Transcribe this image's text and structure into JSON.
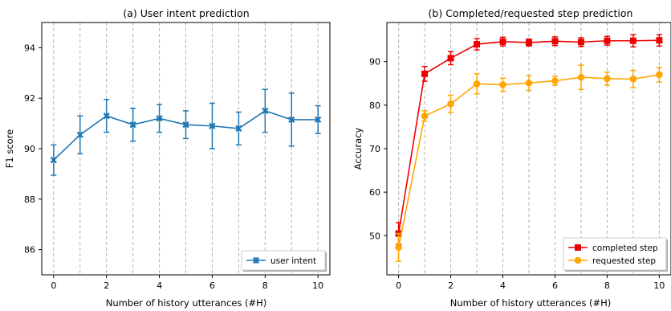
{
  "chart_data": [
    {
      "type": "line",
      "title": "(a) User intent prediction",
      "xlabel": "Number of history utterances (#H)",
      "ylabel": "F1 score",
      "xlim": [
        -0.45,
        10.45
      ],
      "ylim": [
        85.0,
        95.0
      ],
      "xticks": [
        0,
        2,
        4,
        6,
        8,
        10
      ],
      "xtick_labels": [
        "0",
        "2",
        "4",
        "6",
        "8",
        "10"
      ],
      "yticks": [
        86,
        88,
        90,
        92,
        94
      ],
      "ytick_labels": [
        "86",
        "88",
        "90",
        "92",
        "94"
      ],
      "vgrid_dashed": [
        0,
        1,
        2,
        3,
        4,
        5,
        6,
        7,
        8,
        9,
        10
      ],
      "legend_loc": "lower right",
      "series": [
        {
          "name": "user intent",
          "color": "#1f77b4",
          "marker": "x",
          "x": [
            0,
            1,
            2,
            3,
            4,
            5,
            6,
            7,
            8,
            9,
            10
          ],
          "y": [
            89.55,
            90.55,
            91.3,
            90.95,
            91.2,
            90.95,
            90.9,
            90.8,
            91.5,
            91.15,
            91.15
          ],
          "err": [
            0.6,
            0.75,
            0.65,
            0.65,
            0.55,
            0.55,
            0.9,
            0.65,
            0.85,
            1.05,
            0.55
          ]
        }
      ]
    },
    {
      "type": "line",
      "title": "(b) Completed/requested step prediction",
      "xlabel": "Number of history utterances (#H)",
      "ylabel": "Accuracy",
      "xlim": [
        -0.45,
        10.45
      ],
      "ylim": [
        41.0,
        99.0
      ],
      "xticks": [
        0,
        2,
        4,
        6,
        8,
        10
      ],
      "xtick_labels": [
        "0",
        "2",
        "4",
        "6",
        "8",
        "10"
      ],
      "yticks": [
        50,
        60,
        70,
        80,
        90
      ],
      "ytick_labels": [
        "50",
        "60",
        "70",
        "80",
        "90"
      ],
      "vgrid_dashed": [
        0,
        1,
        2,
        3,
        4,
        5,
        6,
        7,
        8,
        9,
        10
      ],
      "legend_loc": "lower right",
      "series": [
        {
          "name": "completed step",
          "color": "#ee0000",
          "marker": "s",
          "x": [
            0,
            1,
            2,
            3,
            4,
            5,
            6,
            7,
            8,
            9,
            10
          ],
          "y": [
            50.5,
            87.2,
            90.8,
            94.0,
            94.6,
            94.4,
            94.7,
            94.5,
            94.8,
            94.8,
            94.9
          ],
          "err": [
            2.5,
            1.7,
            1.5,
            1.3,
            1.0,
            0.8,
            1.0,
            1.0,
            1.0,
            1.4,
            1.3
          ]
        },
        {
          "name": "requested step",
          "color": "#ffa500",
          "marker": "o",
          "x": [
            0,
            1,
            2,
            3,
            4,
            5,
            6,
            7,
            8,
            9,
            10
          ],
          "y": [
            47.3,
            77.5,
            80.3,
            84.9,
            84.7,
            85.1,
            85.6,
            86.4,
            86.1,
            86.0,
            87.0
          ],
          "err": [
            3.2,
            1.2,
            2.0,
            2.3,
            1.5,
            1.7,
            1.0,
            2.8,
            1.5,
            2.0,
            1.7
          ]
        }
      ]
    }
  ]
}
